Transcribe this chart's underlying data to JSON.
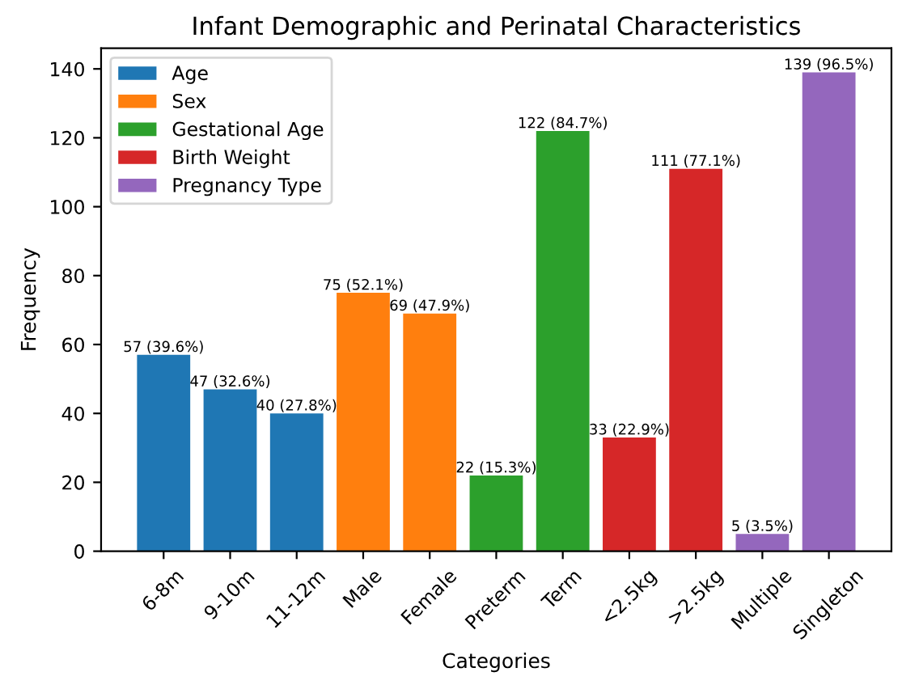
{
  "chart_data": {
    "type": "bar",
    "title": "Infant Demographic and Perinatal Characteristics",
    "xlabel": "Categories",
    "ylabel": "Frequency",
    "categories": [
      "6-8m",
      "9-10m",
      "11-12m",
      "Male",
      "Female",
      "Preterm",
      "Term",
      "<2.5kg",
      ">2.5kg",
      "Multiple",
      "Singleton"
    ],
    "series": [
      {
        "name": "Age",
        "color": "#1f77b4",
        "values": [
          57,
          47,
          40,
          null,
          null,
          null,
          null,
          null,
          null,
          null,
          null
        ],
        "value_labels": [
          "57 (39.6%)",
          "47 (32.6%)",
          "40 (27.8%)",
          null,
          null,
          null,
          null,
          null,
          null,
          null,
          null
        ]
      },
      {
        "name": "Sex",
        "color": "#ff7f0e",
        "values": [
          null,
          null,
          null,
          75,
          69,
          null,
          null,
          null,
          null,
          null,
          null
        ],
        "value_labels": [
          null,
          null,
          null,
          "75 (52.1%)",
          "69 (47.9%)",
          null,
          null,
          null,
          null,
          null,
          null
        ]
      },
      {
        "name": "Gestational Age",
        "color": "#2ca02c",
        "values": [
          null,
          null,
          null,
          null,
          null,
          22,
          122,
          null,
          null,
          null,
          null
        ],
        "value_labels": [
          null,
          null,
          null,
          null,
          null,
          "22 (15.3%)",
          "122 (84.7%)",
          null,
          null,
          null,
          null
        ]
      },
      {
        "name": "Birth Weight",
        "color": "#d62728",
        "values": [
          null,
          null,
          null,
          null,
          null,
          null,
          null,
          33,
          111,
          null,
          null
        ],
        "value_labels": [
          null,
          null,
          null,
          null,
          null,
          null,
          null,
          "33 (22.9%)",
          "111 (77.1%)",
          null,
          null
        ]
      },
      {
        "name": "Pregnancy Type",
        "color": "#9467bd",
        "values": [
          null,
          null,
          null,
          null,
          null,
          null,
          null,
          null,
          null,
          5,
          139
        ],
        "value_labels": [
          null,
          null,
          null,
          null,
          null,
          null,
          null,
          null,
          null,
          "5 (3.5%)",
          "139 (96.5%)"
        ]
      }
    ],
    "ylim": [
      0,
      146
    ],
    "yticks": [
      0,
      20,
      40,
      60,
      80,
      100,
      120,
      140
    ],
    "legend": "top left"
  }
}
